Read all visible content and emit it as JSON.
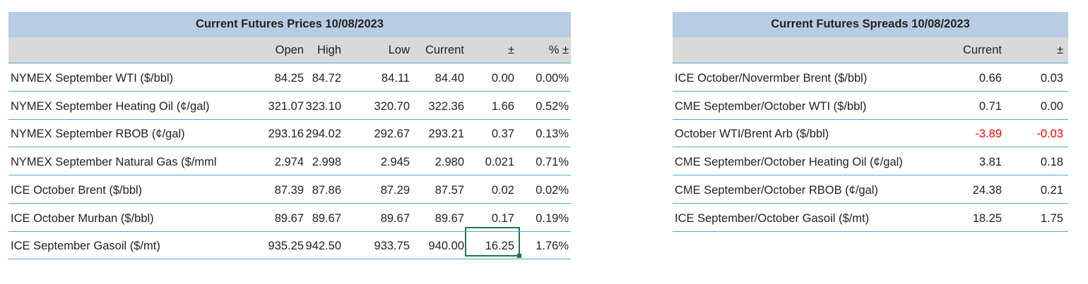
{
  "prices": {
    "title": "Current Futures Prices 10/08/2023",
    "columns": [
      "Open",
      "High",
      "Low",
      "Current",
      "±",
      "% ±"
    ],
    "rows": [
      {
        "label": "NYMEX September WTI ($/bbl)",
        "values": [
          "84.25",
          "84.72",
          "84.11",
          "84.40",
          "0.00",
          "0.00%"
        ]
      },
      {
        "label": "NYMEX September Heating Oil (¢/gal)",
        "values": [
          "321.07",
          "323.10",
          "320.70",
          "322.36",
          "1.66",
          "0.52%"
        ]
      },
      {
        "label": "NYMEX September RBOB (¢/gal)",
        "values": [
          "293.16",
          "294.02",
          "292.67",
          "293.21",
          "0.37",
          "0.13%"
        ]
      },
      {
        "label": "NYMEX September Natural Gas ($/mml",
        "values": [
          "2.974",
          "2.998",
          "2.945",
          "2.980",
          "0.021",
          "0.71%"
        ]
      },
      {
        "label": "ICE October Brent ($/bbl)",
        "values": [
          "87.39",
          "87.86",
          "87.29",
          "87.57",
          "0.02",
          "0.02%"
        ]
      },
      {
        "label": "ICE October Murban ($/bbl)",
        "values": [
          "89.67",
          "89.67",
          "89.67",
          "89.67",
          "0.17",
          "0.19%"
        ]
      },
      {
        "label": "ICE September Gasoil ($/mt)",
        "values": [
          "935.25",
          "942.50",
          "933.75",
          "940.00",
          "16.25",
          "1.76%"
        ]
      }
    ]
  },
  "spreads": {
    "title": "Current Futures Spreads 10/08/2023",
    "columns": [
      "Current",
      "±"
    ],
    "rows": [
      {
        "label": "ICE October/Novermber Brent ($/bbl)",
        "values": [
          "0.66",
          "0.03"
        ]
      },
      {
        "label": "CME September/October WTI ($/bbl)",
        "values": [
          "0.71",
          "0.00"
        ]
      },
      {
        "label": "October WTI/Brent Arb ($/bbl)",
        "values": [
          "-3.89",
          "-0.03"
        ],
        "color": "#ff0000"
      },
      {
        "label": "CME September/October Heating Oil (¢/gal)",
        "values": [
          "3.81",
          "0.18"
        ]
      },
      {
        "label": "CME September/October RBOB (¢/gal)",
        "values": [
          "24.38",
          "0.21"
        ]
      },
      {
        "label": "ICE September/October Gasoil ($/mt)",
        "values": [
          "18.25",
          "1.75"
        ]
      }
    ]
  }
}
